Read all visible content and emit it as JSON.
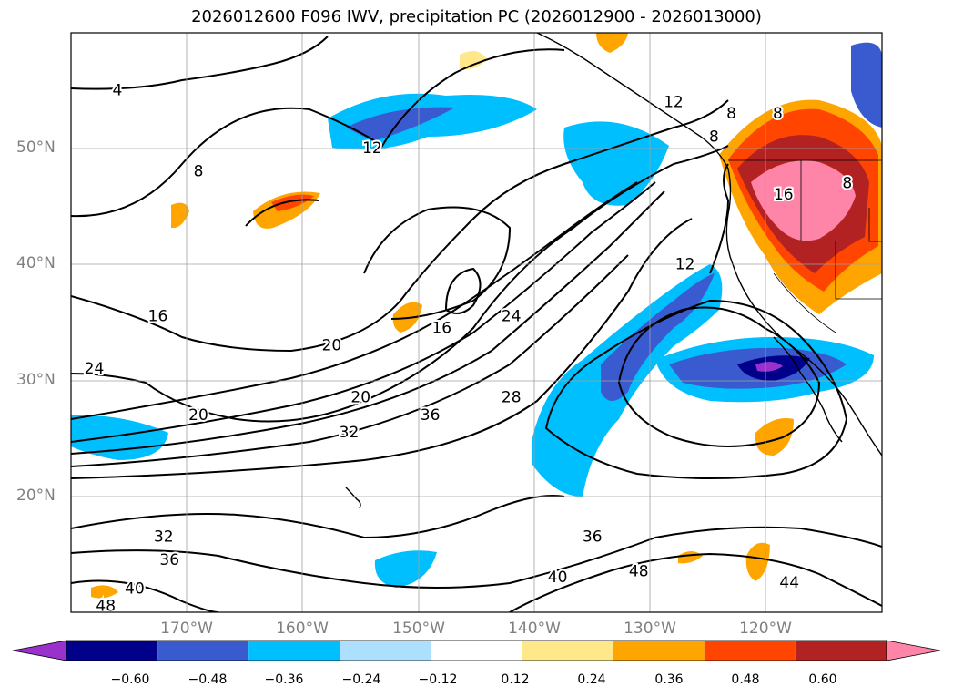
{
  "title": "2026012600 F096 IWV, precipitation PC (2026012900 - 2026013000)",
  "axes": {
    "lat_ticks": [
      {
        "value": 50,
        "label": "50°N"
      },
      {
        "value": 40,
        "label": "40°N"
      },
      {
        "value": 30,
        "label": "30°N"
      },
      {
        "value": 20,
        "label": "20°N"
      }
    ],
    "lon_ticks": [
      {
        "value": -170,
        "label": "170°W"
      },
      {
        "value": -160,
        "label": "160°W"
      },
      {
        "value": -150,
        "label": "150°W"
      },
      {
        "value": -140,
        "label": "140°W"
      },
      {
        "value": -130,
        "label": "130°W"
      },
      {
        "value": -120,
        "label": "120°W"
      }
    ],
    "lon_range": [
      -179,
      -109
    ],
    "lat_range": [
      10,
      60
    ],
    "grid": true
  },
  "contour_labels": [
    {
      "text": "4",
      "lon": -175,
      "lat": 55
    },
    {
      "text": "8",
      "lon": -168,
      "lat": 48
    },
    {
      "text": "12",
      "lon": -153,
      "lat": 50
    },
    {
      "text": "12",
      "lon": -127,
      "lat": 54
    },
    {
      "text": "8",
      "lon": -123.5,
      "lat": 51
    },
    {
      "text": "8",
      "lon": -122,
      "lat": 53
    },
    {
      "text": "8",
      "lon": -118,
      "lat": 53
    },
    {
      "text": "8",
      "lon": -112,
      "lat": 47
    },
    {
      "text": "16",
      "lon": -117.5,
      "lat": 46
    },
    {
      "text": "12",
      "lon": -126,
      "lat": 40
    },
    {
      "text": "16",
      "lon": -171.5,
      "lat": 35.5
    },
    {
      "text": "16",
      "lon": -147,
      "lat": 34.5
    },
    {
      "text": "24",
      "lon": -177,
      "lat": 31
    },
    {
      "text": "20",
      "lon": -156.5,
      "lat": 33
    },
    {
      "text": "24",
      "lon": -141,
      "lat": 35.5
    },
    {
      "text": "20",
      "lon": -168,
      "lat": 27
    },
    {
      "text": "20",
      "lon": -154,
      "lat": 28.5
    },
    {
      "text": "36",
      "lon": -148,
      "lat": 27
    },
    {
      "text": "32",
      "lon": -155,
      "lat": 25.5
    },
    {
      "text": "28",
      "lon": -141,
      "lat": 28.5
    },
    {
      "text": "32",
      "lon": -171,
      "lat": 16.5
    },
    {
      "text": "36",
      "lon": -170.5,
      "lat": 14.5
    },
    {
      "text": "36",
      "lon": -134,
      "lat": 16.5
    },
    {
      "text": "40",
      "lon": -173.5,
      "lat": 12
    },
    {
      "text": "48",
      "lon": -176,
      "lat": 10.5
    },
    {
      "text": "40",
      "lon": -137,
      "lat": 13
    },
    {
      "text": "48",
      "lon": -130,
      "lat": 13.5
    },
    {
      "text": "44",
      "lon": -117,
      "lat": 12.5
    }
  ],
  "colorbar": {
    "colors": [
      "#9932CC",
      "#00008B",
      "#3A5BD0",
      "#00BFFF",
      "#ADDFFF",
      "#FFFFFF",
      "#FFE88A",
      "#FFA500",
      "#FF4500",
      "#B22222",
      "#FF85A8"
    ],
    "ticks": [
      "−0.60",
      "−0.48",
      "−0.36",
      "−0.24",
      "−0.12",
      "0.12",
      "0.24",
      "0.36",
      "0.48",
      "0.60"
    ]
  }
}
